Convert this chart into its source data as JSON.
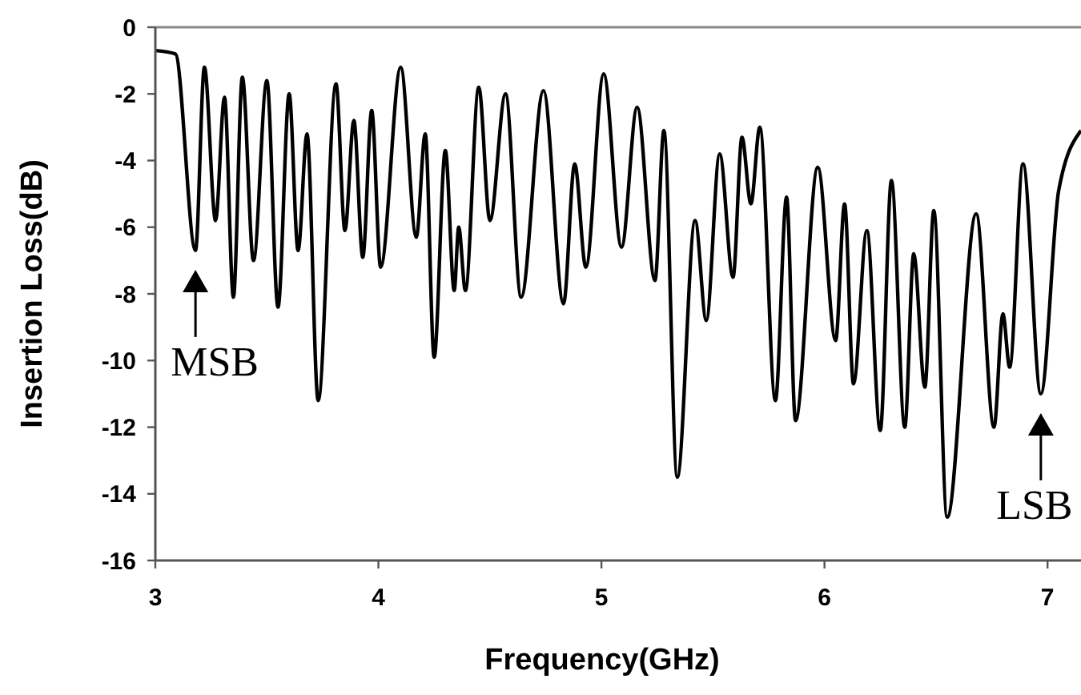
{
  "chart_data": {
    "type": "line",
    "xlabel": "Frequency(GHz)",
    "ylabel": "Insertion Loss(dB)",
    "x": [
      3,
      3.09,
      3.18,
      3.22,
      3.27,
      3.31,
      3.35,
      3.39,
      3.44,
      3.5,
      3.55,
      3.6,
      3.64,
      3.68,
      3.73,
      3.81,
      3.85,
      3.89,
      3.93,
      3.97,
      4.01,
      4.1,
      4.17,
      4.21,
      4.25,
      4.3,
      4.34,
      4.36,
      4.39,
      4.45,
      4.5,
      4.57,
      4.64,
      4.74,
      4.83,
      4.88,
      4.93,
      5.01,
      5.09,
      5.16,
      5.24,
      5.28,
      5.34,
      5.42,
      5.47,
      5.53,
      5.59,
      5.63,
      5.67,
      5.71,
      5.78,
      5.83,
      5.87,
      5.97,
      6.05,
      6.09,
      6.13,
      6.19,
      6.25,
      6.3,
      6.36,
      6.4,
      6.45,
      6.49,
      6.55,
      6.68,
      6.76,
      6.8,
      6.83,
      6.89,
      6.97,
      7.05,
      7.15
    ],
    "series": [
      {
        "color": "#000000",
        "values": [
          -0.7,
          -0.8,
          -6.7,
          -1.2,
          -5.8,
          -2.1,
          -8.1,
          -1.5,
          -7.0,
          -1.6,
          -8.4,
          -2.0,
          -6.7,
          -3.2,
          -11.2,
          -1.7,
          -6.1,
          -2.8,
          -6.9,
          -2.5,
          -7.2,
          -1.2,
          -6.3,
          -3.2,
          -9.9,
          -3.7,
          -7.9,
          -6.0,
          -7.9,
          -1.8,
          -5.8,
          -2.0,
          -8.1,
          -1.9,
          -8.3,
          -4.1,
          -7.2,
          -1.4,
          -6.6,
          -2.4,
          -7.6,
          -3.1,
          -13.5,
          -5.8,
          -8.8,
          -3.8,
          -7.5,
          -3.3,
          -5.3,
          -3.0,
          -11.2,
          -5.1,
          -11.8,
          -4.2,
          -9.4,
          -5.3,
          -10.7,
          -6.1,
          -12.1,
          -4.6,
          -12.0,
          -6.8,
          -10.8,
          -5.5,
          -14.7,
          -5.6,
          -12.0,
          -8.6,
          -10.2,
          -4.1,
          -11.0,
          -4.9,
          -3.1
        ]
      }
    ],
    "xlim": [
      3,
      7.15
    ],
    "xticks": [
      3,
      4,
      5,
      6,
      7
    ],
    "ylim": [
      -16,
      0
    ],
    "yticks": [
      -16,
      -14,
      -12,
      -10,
      -8,
      -6,
      -4,
      -2,
      0
    ],
    "grid": false,
    "marker": "none",
    "line_style": "solid",
    "annotations": [
      {
        "text": "MSB",
        "x": 3.18,
        "y": -6.7
      },
      {
        "text": "LSB",
        "x": 6.97,
        "y": -11.0
      }
    ]
  }
}
